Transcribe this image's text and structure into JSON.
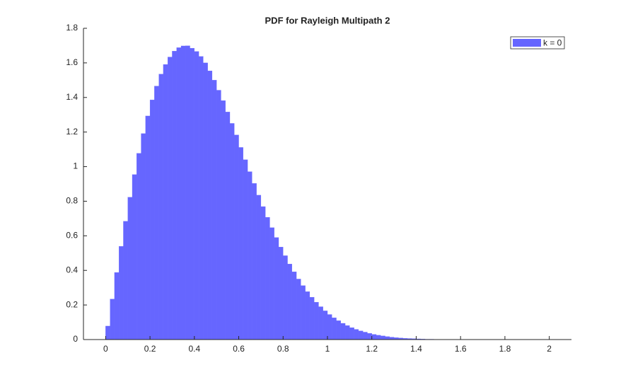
{
  "chart_data": {
    "type": "histogram",
    "title": "PDF for Rayleigh Multipath 2",
    "bins": [
      0,
      0.02,
      0.04,
      0.06,
      0.08,
      0.1,
      0.12,
      0.14,
      0.16,
      0.18,
      0.2,
      0.22,
      0.24,
      0.26,
      0.28,
      0.3,
      0.32,
      0.34,
      0.36,
      0.38,
      0.4,
      0.42,
      0.44,
      0.46,
      0.48,
      0.5,
      0.52,
      0.54,
      0.56,
      0.58,
      0.6,
      0.62,
      0.64,
      0.66,
      0.68,
      0.7,
      0.72,
      0.74,
      0.76,
      0.78,
      0.8,
      0.82,
      0.84,
      0.86,
      0.88,
      0.9,
      0.92,
      0.94,
      0.96,
      0.98,
      1,
      1.02,
      1.04,
      1.06,
      1.08,
      1.1,
      1.12,
      1.14,
      1.16,
      1.18,
      1.2,
      1.22,
      1.24,
      1.26,
      1.28,
      1.3,
      1.32,
      1.34,
      1.36,
      1.38,
      1.4,
      1.42,
      1.44,
      1.46,
      1.48,
      1.5,
      1.52
    ],
    "series": [
      {
        "name": "k = 0",
        "color": "#6666ff",
        "values": [
          0.078,
          0.234,
          0.388,
          0.539,
          0.684,
          0.823,
          0.954,
          1.077,
          1.191,
          1.293,
          1.386,
          1.466,
          1.535,
          1.591,
          1.634,
          1.668,
          1.688,
          1.698,
          1.699,
          1.685,
          1.666,
          1.637,
          1.6,
          1.554,
          1.5,
          1.442,
          1.382,
          1.316,
          1.25,
          1.183,
          1.111,
          1.04,
          0.971,
          0.903,
          0.835,
          0.769,
          0.707,
          0.647,
          0.59,
          0.535,
          0.485,
          0.437,
          0.392,
          0.35,
          0.312,
          0.277,
          0.245,
          0.216,
          0.19,
          0.166,
          0.145,
          0.126,
          0.109,
          0.094,
          0.081,
          0.069,
          0.059,
          0.05,
          0.043,
          0.036,
          0.03,
          0.025,
          0.021,
          0.017,
          0.014,
          0.011,
          0.009,
          0.007,
          0.006,
          0.005,
          0.004,
          0.003,
          0.002,
          0.002,
          0.001,
          0.001
        ]
      }
    ],
    "xlim": [
      -0.1,
      2.1
    ],
    "xticks": [
      0,
      0.2,
      0.4,
      0.6,
      0.8,
      1,
      1.2,
      1.4,
      1.6,
      1.8,
      2
    ],
    "ylim": [
      0,
      1.8
    ],
    "yticks": [
      0,
      0.2,
      0.4,
      0.6,
      0.8,
      1,
      1.2,
      1.4,
      1.6,
      1.8
    ],
    "legend": "upper right"
  }
}
